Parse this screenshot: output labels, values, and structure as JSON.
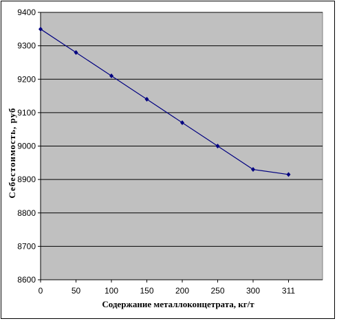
{
  "chart_data": {
    "type": "line",
    "title": "",
    "xlabel": "Содержание металлоконцетрата, кг/т",
    "ylabel": "Себестоимость, руб",
    "categories": [
      "0",
      "50",
      "100",
      "150",
      "200",
      "250",
      "300",
      "311"
    ],
    "series": [
      {
        "values": [
          9350,
          9280,
          9210,
          9140,
          9070,
          9000,
          8930,
          8915
        ]
      }
    ],
    "ylim": [
      8600,
      9400
    ],
    "yticks": [
      "8600",
      "8700",
      "8800",
      "8900",
      "9000",
      "9100",
      "9200",
      "9300",
      "9400"
    ],
    "grid": "horizontal",
    "legend": "none",
    "colors": {
      "plot_bg": "#c0c0c0",
      "line": "#000080",
      "grid": "#000000"
    }
  }
}
